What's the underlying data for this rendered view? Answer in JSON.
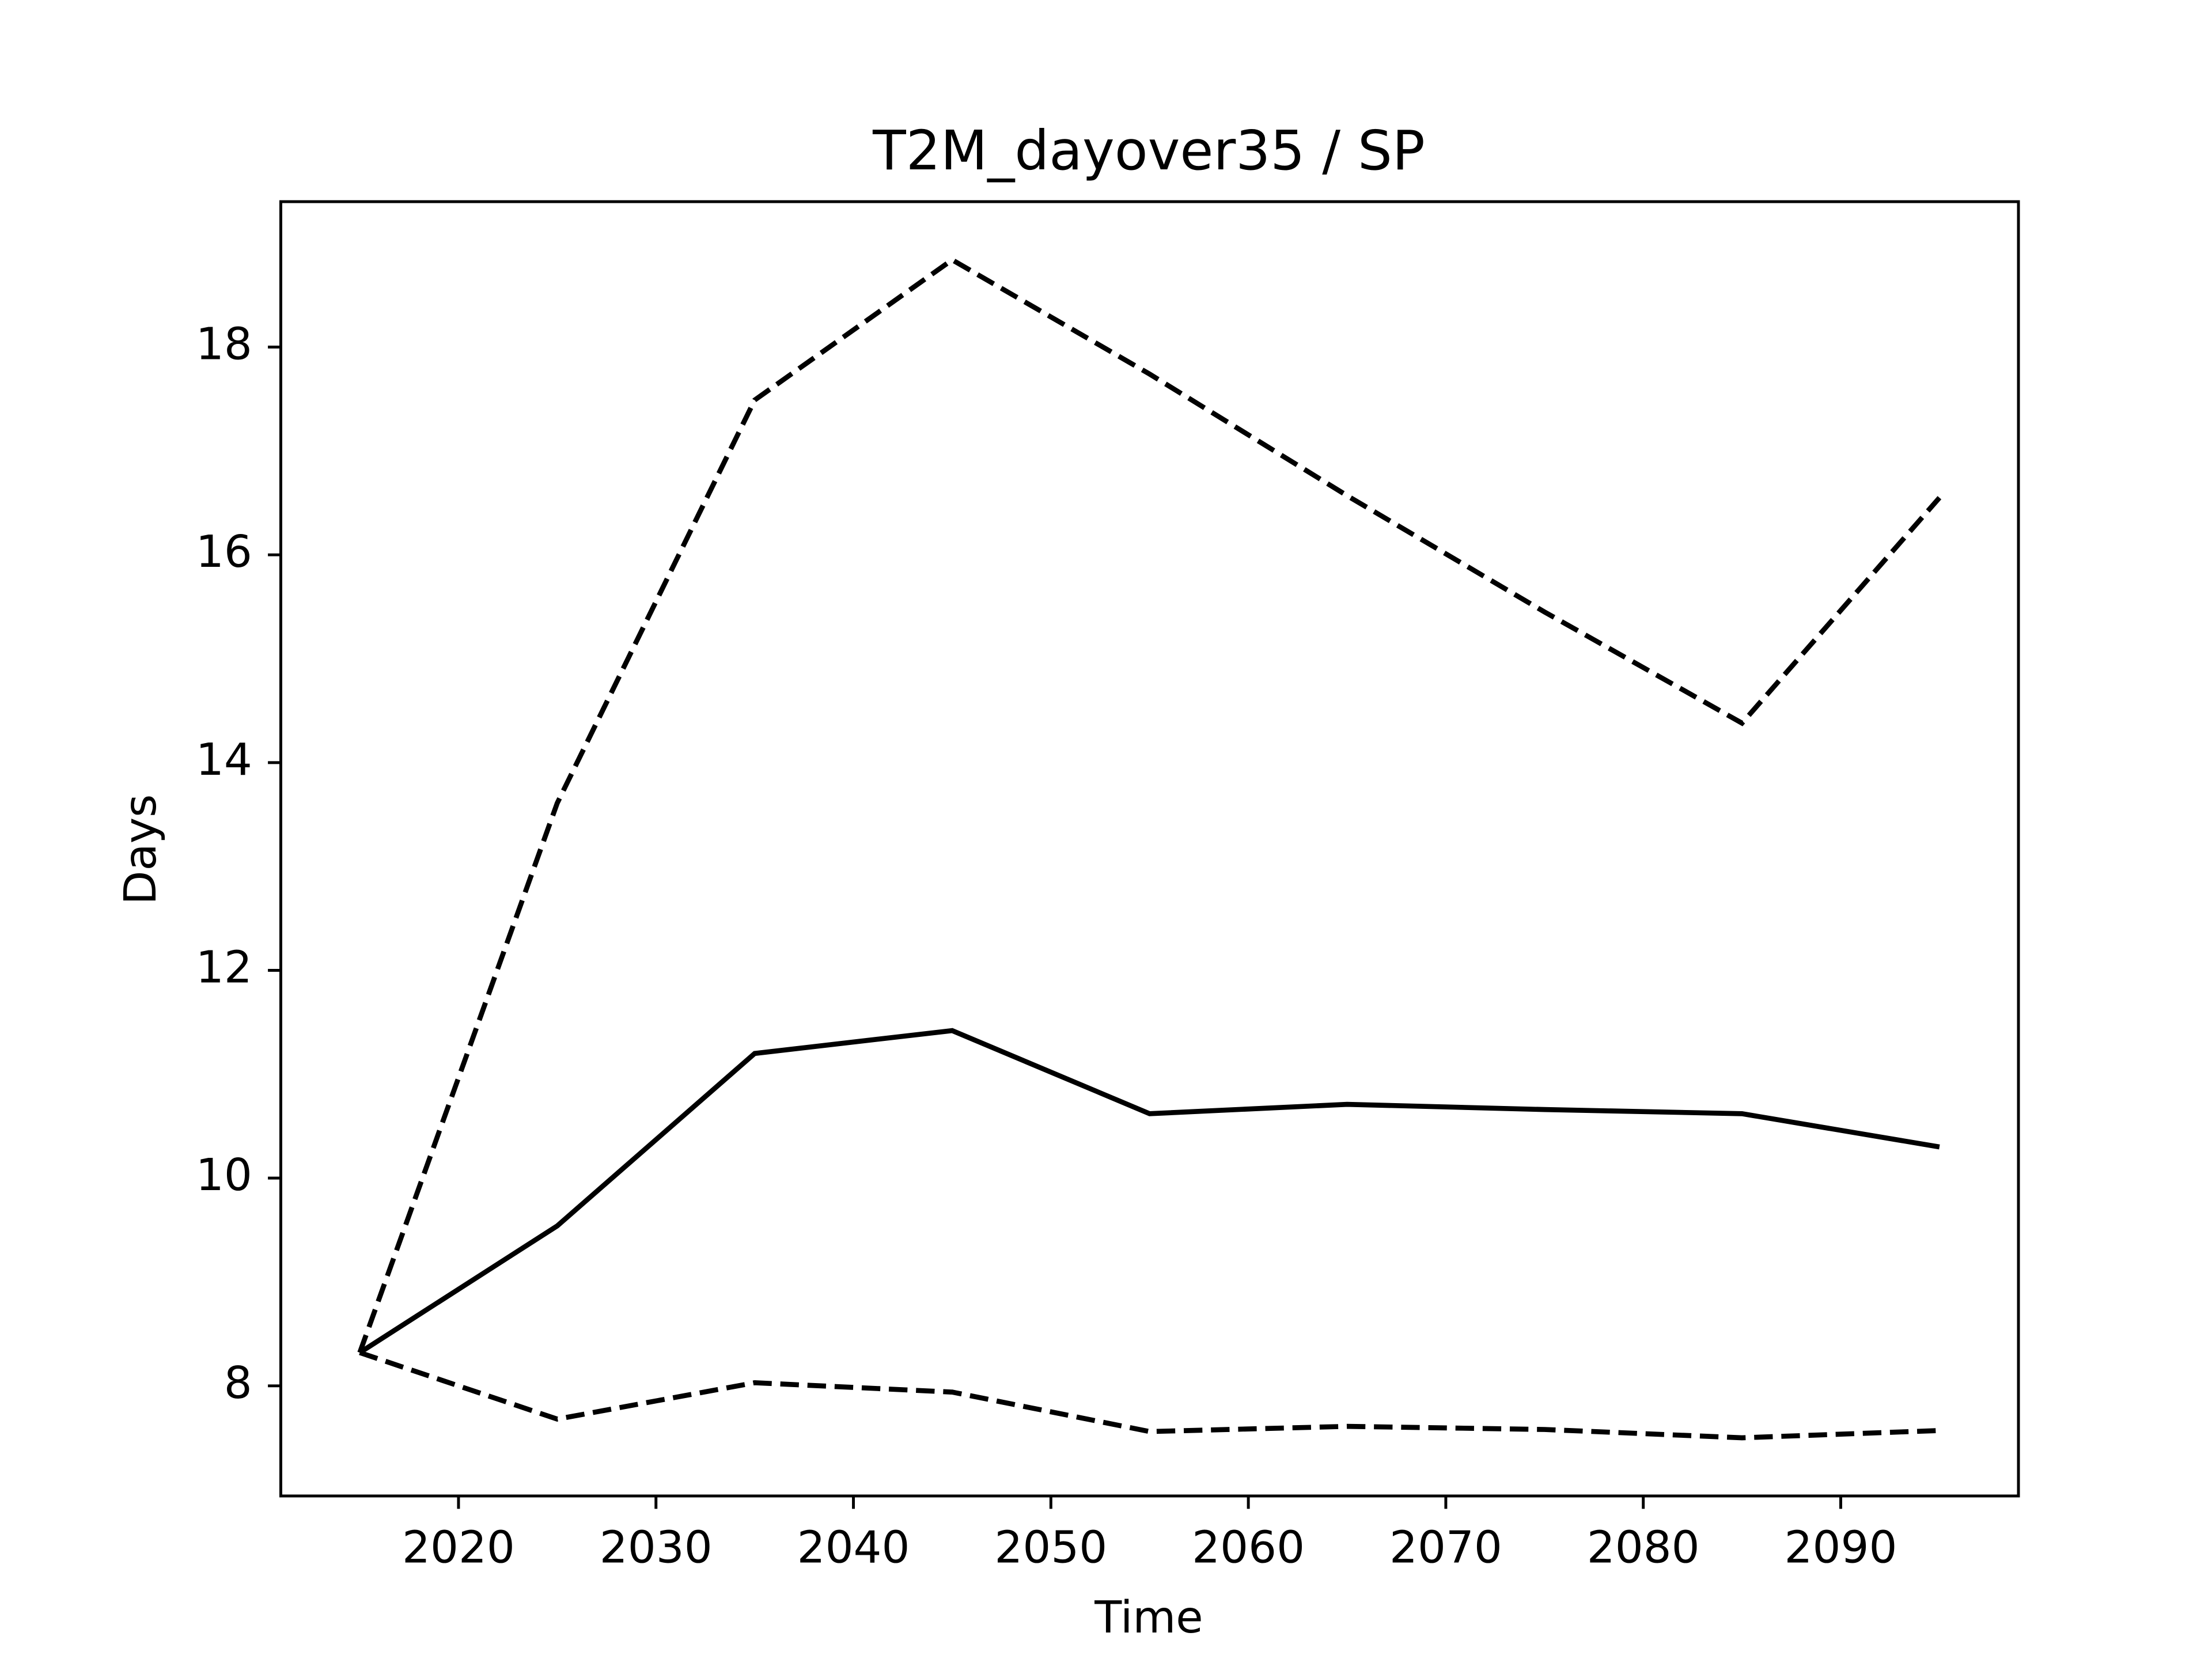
{
  "chart_data": {
    "type": "line",
    "title": "T2M_dayover35 / SP",
    "xlabel": "Time",
    "ylabel": "Days",
    "x": [
      2015,
      2025,
      2035,
      2045,
      2055,
      2065,
      2075,
      2085,
      2095
    ],
    "series": [
      {
        "color": "#000000",
        "linestyle": "solid",
        "values": [
          8.32,
          9.54,
          11.2,
          11.42,
          10.62,
          10.71,
          10.66,
          10.62,
          10.3
        ]
      },
      {
        "color": "#000000",
        "linestyle": "dashed",
        "values": [
          8.32,
          13.61,
          17.49,
          18.84,
          17.74,
          16.57,
          15.45,
          14.38,
          16.55
        ]
      },
      {
        "color": "#000000",
        "linestyle": "dashed",
        "values": [
          8.32,
          7.68,
          8.03,
          7.94,
          7.56,
          7.61,
          7.58,
          7.5,
          7.57
        ]
      }
    ],
    "xlim": [
      2011,
      2099
    ],
    "xticks": [
      2020,
      2030,
      2040,
      2050,
      2060,
      2070,
      2080,
      2090
    ],
    "ylim": [
      6.94,
      19.4
    ],
    "yticks": [
      8,
      10,
      12,
      14,
      16,
      18
    ],
    "grid": false
  }
}
